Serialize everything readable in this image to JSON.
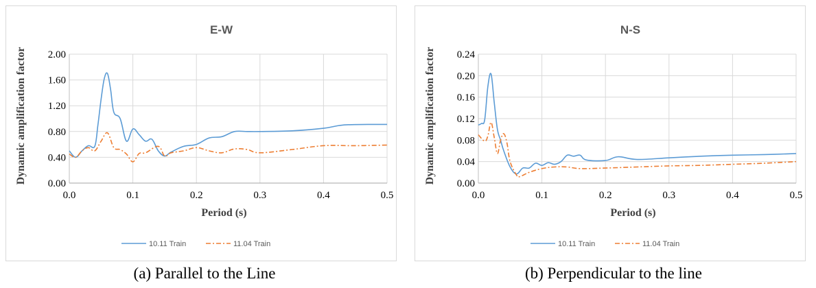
{
  "chart_data": [
    {
      "type": "line",
      "title": "E-W",
      "xlabel": "Period (s)",
      "ylabel": "Dynamic amplification factor",
      "xlim": [
        0,
        0.5
      ],
      "ylim": [
        0,
        2.0
      ],
      "x_ticks": [
        "0.0",
        "0.1",
        "0.2",
        "0.3",
        "0.4",
        "0.5"
      ],
      "y_ticks": [
        "0.00",
        "0.40",
        "0.80",
        "1.20",
        "1.60",
        "2.00"
      ],
      "grid": true,
      "legend_position": "bottom",
      "series": [
        {
          "name": "10.11 Train",
          "color": "#5b9bd5",
          "style": "solid",
          "x": [
            0.0,
            0.01,
            0.02,
            0.03,
            0.04,
            0.045,
            0.05,
            0.055,
            0.06,
            0.065,
            0.07,
            0.08,
            0.09,
            0.1,
            0.11,
            0.12,
            0.13,
            0.14,
            0.15,
            0.16,
            0.18,
            0.2,
            0.22,
            0.24,
            0.26,
            0.28,
            0.3,
            0.35,
            0.4,
            0.43,
            0.47,
            0.5
          ],
          "y": [
            0.5,
            0.4,
            0.5,
            0.58,
            0.57,
            0.9,
            1.3,
            1.62,
            1.7,
            1.45,
            1.1,
            1.0,
            0.65,
            0.84,
            0.75,
            0.65,
            0.68,
            0.5,
            0.42,
            0.48,
            0.57,
            0.6,
            0.7,
            0.72,
            0.8,
            0.8,
            0.8,
            0.81,
            0.85,
            0.9,
            0.91,
            0.91
          ]
        },
        {
          "name": "11.04 Train",
          "color": "#ed7d31",
          "style": "dashdot",
          "x": [
            0.0,
            0.01,
            0.02,
            0.03,
            0.04,
            0.05,
            0.06,
            0.07,
            0.08,
            0.09,
            0.1,
            0.11,
            0.12,
            0.14,
            0.15,
            0.16,
            0.18,
            0.2,
            0.22,
            0.24,
            0.26,
            0.28,
            0.3,
            0.35,
            0.4,
            0.45,
            0.5
          ],
          "y": [
            0.45,
            0.4,
            0.5,
            0.55,
            0.5,
            0.65,
            0.78,
            0.55,
            0.52,
            0.45,
            0.33,
            0.46,
            0.47,
            0.57,
            0.42,
            0.47,
            0.5,
            0.55,
            0.5,
            0.47,
            0.53,
            0.52,
            0.47,
            0.52,
            0.58,
            0.58,
            0.59
          ]
        }
      ]
    },
    {
      "type": "line",
      "title": "N-S",
      "xlabel": "Period (s)",
      "ylabel": "Dynamic amplification factor",
      "xlim": [
        0,
        0.5
      ],
      "ylim": [
        0,
        0.24
      ],
      "x_ticks": [
        "0.0",
        "0.1",
        "0.2",
        "0.3",
        "0.4",
        "0.5"
      ],
      "y_ticks": [
        "0.00",
        "0.04",
        "0.08",
        "0.12",
        "0.16",
        "0.20",
        "0.24"
      ],
      "grid": true,
      "legend_position": "bottom",
      "series": [
        {
          "name": "10.11 Train",
          "color": "#5b9bd5",
          "style": "solid",
          "x": [
            0.0,
            0.005,
            0.01,
            0.015,
            0.02,
            0.025,
            0.03,
            0.035,
            0.04,
            0.05,
            0.06,
            0.07,
            0.08,
            0.09,
            0.1,
            0.11,
            0.12,
            0.13,
            0.14,
            0.15,
            0.16,
            0.17,
            0.2,
            0.22,
            0.25,
            0.3,
            0.35,
            0.4,
            0.45,
            0.5
          ],
          "y": [
            0.108,
            0.111,
            0.118,
            0.18,
            0.203,
            0.15,
            0.1,
            0.08,
            0.06,
            0.03,
            0.017,
            0.028,
            0.028,
            0.037,
            0.033,
            0.038,
            0.035,
            0.04,
            0.052,
            0.05,
            0.052,
            0.043,
            0.042,
            0.049,
            0.044,
            0.047,
            0.05,
            0.052,
            0.053,
            0.055
          ]
        },
        {
          "name": "11.04 Train",
          "color": "#ed7d31",
          "style": "dashdot",
          "x": [
            0.0,
            0.01,
            0.015,
            0.02,
            0.025,
            0.03,
            0.035,
            0.04,
            0.045,
            0.05,
            0.06,
            0.065,
            0.08,
            0.1,
            0.12,
            0.14,
            0.16,
            0.2,
            0.25,
            0.3,
            0.35,
            0.4,
            0.45,
            0.5
          ],
          "y": [
            0.09,
            0.078,
            0.088,
            0.113,
            0.085,
            0.055,
            0.08,
            0.092,
            0.075,
            0.04,
            0.015,
            0.012,
            0.02,
            0.027,
            0.03,
            0.03,
            0.027,
            0.028,
            0.03,
            0.032,
            0.033,
            0.035,
            0.037,
            0.04
          ]
        }
      ]
    }
  ],
  "captions": [
    "(a)  Parallel to the Line",
    "(b)  Perpendicular to the line"
  ]
}
